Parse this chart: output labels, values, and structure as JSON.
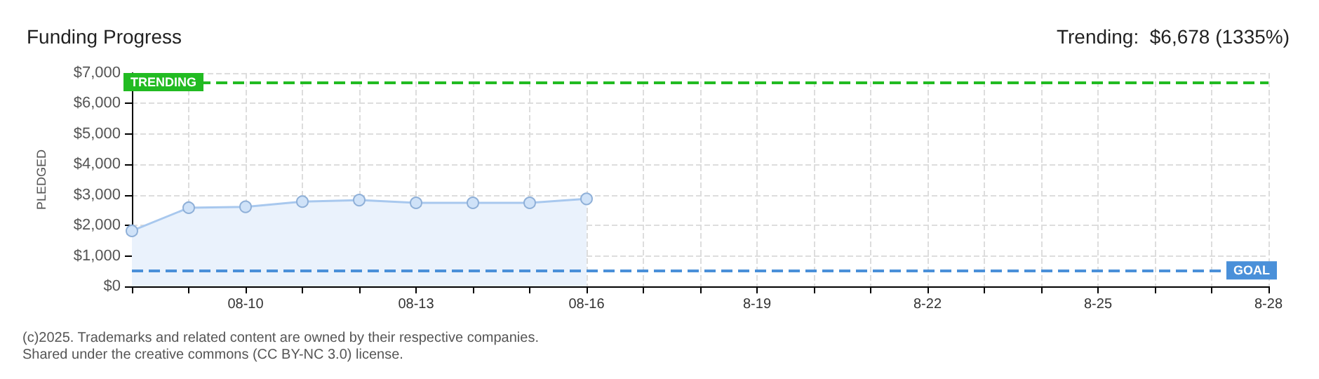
{
  "chart_data": {
    "type": "area",
    "title": "Funding Progress",
    "subtitle": "Trending:  $6,678 (1335%)",
    "ylabel": "PLEDGED",
    "categories": [
      null,
      null,
      "08-10",
      null,
      null,
      "08-13",
      null,
      null,
      "08-16",
      null,
      null,
      "8-19",
      null,
      null,
      "8-22",
      null,
      null,
      "8-25",
      null,
      null,
      "8-28"
    ],
    "series": [
      {
        "color": "#a8c8ee",
        "values": [
          1820,
          2580,
          2610,
          2780,
          2830,
          2740,
          2740,
          2740,
          2870,
          null,
          null,
          null,
          null,
          null,
          null,
          null,
          null,
          null,
          null,
          null,
          null
        ]
      }
    ],
    "ylim": [
      0,
      7000
    ],
    "yticks": [
      {
        "value": 0,
        "label": "$0"
      },
      {
        "value": 1000,
        "label": "$1,000"
      },
      {
        "value": 2000,
        "label": "$2,000"
      },
      {
        "value": 3000,
        "label": "$3,000"
      },
      {
        "value": 4000,
        "label": "$4,000"
      },
      {
        "value": 5000,
        "label": "$5,000"
      },
      {
        "value": 6000,
        "label": "$6,000"
      },
      {
        "value": 7000,
        "label": "$7,000"
      }
    ],
    "ref_lines": [
      {
        "axis": "y",
        "value": 500,
        "label": "GOAL",
        "color": "#4a90d9",
        "line_style": "dashed"
      },
      {
        "axis": "y",
        "value": 6678,
        "label": "TRENDING",
        "color": "#22bb22",
        "line_style": "dashed"
      }
    ],
    "annotations": [
      "(c)2025. Trademarks and related content are owned by their respective companies.",
      "Shared under the creative commons (CC BY-NC 3.0) license."
    ],
    "grid": true,
    "marker": "circle"
  }
}
